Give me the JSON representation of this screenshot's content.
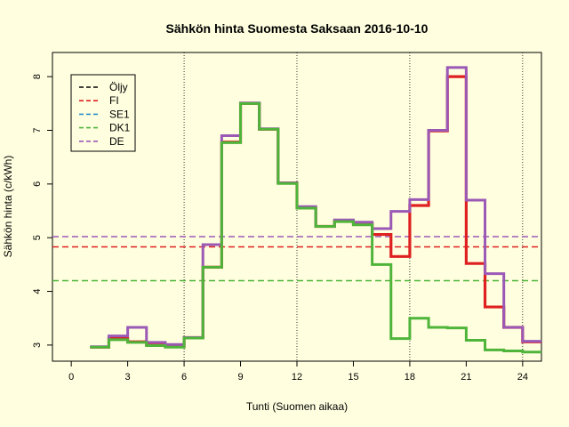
{
  "chart_data": {
    "type": "line",
    "title": "Sähkön hinta Suomesta Saksaan 2016-10-10",
    "xlabel": "Tunti (Suomen aikaa)",
    "ylabel": "Sähkön hinta (c/kWh)",
    "xlim": [
      -1,
      25
    ],
    "ylim": [
      2.7,
      8.45
    ],
    "xticks": [
      0,
      3,
      6,
      9,
      12,
      15,
      18,
      21,
      24
    ],
    "yticks": [
      3,
      4,
      5,
      6,
      7,
      8
    ],
    "vlines": [
      6,
      12,
      18,
      24
    ],
    "legend_position": "top-left",
    "hours": [
      1,
      2,
      3,
      4,
      5,
      6,
      7,
      8,
      9,
      10,
      11,
      12,
      13,
      14,
      15,
      16,
      17,
      18,
      19,
      20,
      21,
      22,
      23,
      24
    ],
    "series": [
      {
        "name": "Öljy",
        "color": "#000000",
        "dashed_level": null,
        "values": []
      },
      {
        "name": "FI",
        "color": "#df2020",
        "dashed_level": 4.83,
        "values": [
          2.96,
          3.12,
          3.06,
          3.0,
          2.97,
          3.14,
          4.45,
          6.78,
          7.5,
          7.02,
          6.02,
          5.56,
          5.21,
          5.31,
          5.26,
          5.06,
          4.65,
          5.6,
          6.99,
          8.0,
          4.52,
          3.71,
          3.33,
          3.06
        ]
      },
      {
        "name": "SE1",
        "color": "#2a90c8",
        "dashed_level": null,
        "values": []
      },
      {
        "name": "DK1",
        "color": "#4fb43a",
        "dashed_level": 4.2,
        "values": [
          2.96,
          3.1,
          3.05,
          2.99,
          2.96,
          3.13,
          4.45,
          6.77,
          7.5,
          7.02,
          6.01,
          5.55,
          5.21,
          5.3,
          5.24,
          4.5,
          3.12,
          3.5,
          3.33,
          3.32,
          3.09,
          2.91,
          2.89,
          2.87
        ]
      },
      {
        "name": "DE",
        "color": "#9b59b6",
        "dashed_level": 5.02,
        "values": [
          2.97,
          3.17,
          3.33,
          3.05,
          3.01,
          3.14,
          4.87,
          6.9,
          7.51,
          7.03,
          6.02,
          5.58,
          5.21,
          5.33,
          5.29,
          5.17,
          5.49,
          5.71,
          7.0,
          8.17,
          5.7,
          4.33,
          3.33,
          3.07
        ]
      }
    ]
  }
}
